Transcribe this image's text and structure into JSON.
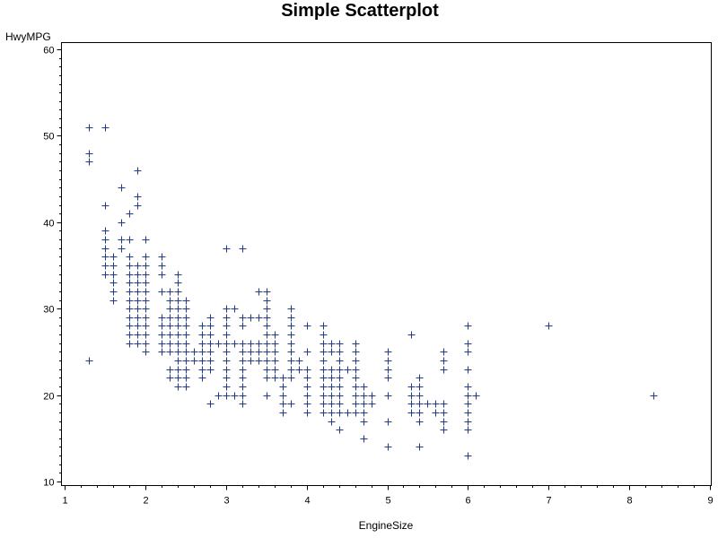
{
  "chart_data": {
    "type": "scatter",
    "title": "Simple Scatterplot",
    "xlabel": "EngineSize",
    "ylabel": "HwyMPG",
    "xlim": [
      1,
      9
    ],
    "ylim": [
      10,
      60
    ],
    "xticks": [
      1,
      2,
      3,
      4,
      5,
      6,
      7,
      8,
      9
    ],
    "yticks": [
      10,
      20,
      30,
      40,
      50,
      60
    ],
    "marker": "plus",
    "marker_color": "#1f3b8a",
    "grid": false,
    "points": [
      [
        1.3,
        51
      ],
      [
        1.3,
        48
      ],
      [
        1.3,
        47
      ],
      [
        1.3,
        24
      ],
      [
        1.5,
        51
      ],
      [
        1.5,
        42
      ],
      [
        1.5,
        39
      ],
      [
        1.5,
        38
      ],
      [
        1.5,
        37
      ],
      [
        1.5,
        36
      ],
      [
        1.5,
        35
      ],
      [
        1.5,
        34
      ],
      [
        1.6,
        36
      ],
      [
        1.6,
        35
      ],
      [
        1.6,
        34
      ],
      [
        1.6,
        33
      ],
      [
        1.6,
        32
      ],
      [
        1.6,
        31
      ],
      [
        1.7,
        44
      ],
      [
        1.7,
        40
      ],
      [
        1.7,
        38
      ],
      [
        1.7,
        37
      ],
      [
        1.8,
        41
      ],
      [
        1.8,
        38
      ],
      [
        1.8,
        36
      ],
      [
        1.8,
        35
      ],
      [
        1.8,
        34
      ],
      [
        1.8,
        33
      ],
      [
        1.8,
        32
      ],
      [
        1.8,
        31
      ],
      [
        1.8,
        30
      ],
      [
        1.8,
        29
      ],
      [
        1.8,
        28
      ],
      [
        1.8,
        27
      ],
      [
        1.8,
        26
      ],
      [
        1.9,
        46
      ],
      [
        1.9,
        43
      ],
      [
        1.9,
        42
      ],
      [
        1.9,
        35
      ],
      [
        1.9,
        34
      ],
      [
        1.9,
        33
      ],
      [
        1.9,
        32
      ],
      [
        1.9,
        31
      ],
      [
        1.9,
        30
      ],
      [
        1.9,
        29
      ],
      [
        1.9,
        28
      ],
      [
        1.9,
        27
      ],
      [
        1.9,
        26
      ],
      [
        2.0,
        38
      ],
      [
        2.0,
        36
      ],
      [
        2.0,
        35
      ],
      [
        2.0,
        34
      ],
      [
        2.0,
        33
      ],
      [
        2.0,
        32
      ],
      [
        2.0,
        31
      ],
      [
        2.0,
        30
      ],
      [
        2.0,
        29
      ],
      [
        2.0,
        28
      ],
      [
        2.0,
        27
      ],
      [
        2.0,
        26
      ],
      [
        2.0,
        25
      ],
      [
        2.2,
        36
      ],
      [
        2.2,
        35
      ],
      [
        2.2,
        34
      ],
      [
        2.2,
        32
      ],
      [
        2.2,
        29
      ],
      [
        2.2,
        28
      ],
      [
        2.2,
        27
      ],
      [
        2.2,
        26
      ],
      [
        2.2,
        25
      ],
      [
        2.3,
        32
      ],
      [
        2.3,
        31
      ],
      [
        2.3,
        30
      ],
      [
        2.3,
        29
      ],
      [
        2.3,
        28
      ],
      [
        2.3,
        27
      ],
      [
        2.3,
        26
      ],
      [
        2.3,
        25
      ],
      [
        2.3,
        23
      ],
      [
        2.3,
        22
      ],
      [
        2.4,
        34
      ],
      [
        2.4,
        33
      ],
      [
        2.4,
        32
      ],
      [
        2.4,
        31
      ],
      [
        2.4,
        30
      ],
      [
        2.4,
        29
      ],
      [
        2.4,
        28
      ],
      [
        2.4,
        27
      ],
      [
        2.4,
        26
      ],
      [
        2.4,
        25
      ],
      [
        2.4,
        24
      ],
      [
        2.4,
        23
      ],
      [
        2.4,
        22
      ],
      [
        2.4,
        21
      ],
      [
        2.5,
        31
      ],
      [
        2.5,
        30
      ],
      [
        2.5,
        29
      ],
      [
        2.5,
        28
      ],
      [
        2.5,
        27
      ],
      [
        2.5,
        26
      ],
      [
        2.5,
        25
      ],
      [
        2.5,
        24
      ],
      [
        2.5,
        23
      ],
      [
        2.5,
        22
      ],
      [
        2.5,
        21
      ],
      [
        2.6,
        25
      ],
      [
        2.6,
        24
      ],
      [
        2.7,
        28
      ],
      [
        2.7,
        27
      ],
      [
        2.7,
        26
      ],
      [
        2.7,
        25
      ],
      [
        2.7,
        24
      ],
      [
        2.7,
        23
      ],
      [
        2.7,
        22
      ],
      [
        2.8,
        29
      ],
      [
        2.8,
        28
      ],
      [
        2.8,
        27
      ],
      [
        2.8,
        26
      ],
      [
        2.8,
        25
      ],
      [
        2.8,
        24
      ],
      [
        2.8,
        23
      ],
      [
        2.8,
        19
      ],
      [
        2.9,
        26
      ],
      [
        2.9,
        20
      ],
      [
        3.0,
        37
      ],
      [
        3.0,
        30
      ],
      [
        3.0,
        29
      ],
      [
        3.0,
        28
      ],
      [
        3.0,
        27
      ],
      [
        3.0,
        26
      ],
      [
        3.0,
        25
      ],
      [
        3.0,
        24
      ],
      [
        3.0,
        23
      ],
      [
        3.0,
        22
      ],
      [
        3.0,
        21
      ],
      [
        3.0,
        20
      ],
      [
        3.1,
        30
      ],
      [
        3.1,
        26
      ],
      [
        3.1,
        20
      ],
      [
        3.2,
        37
      ],
      [
        3.2,
        29
      ],
      [
        3.2,
        28
      ],
      [
        3.2,
        26
      ],
      [
        3.2,
        25
      ],
      [
        3.2,
        24
      ],
      [
        3.2,
        23
      ],
      [
        3.2,
        22
      ],
      [
        3.2,
        21
      ],
      [
        3.2,
        20
      ],
      [
        3.2,
        19
      ],
      [
        3.3,
        29
      ],
      [
        3.3,
        26
      ],
      [
        3.3,
        25
      ],
      [
        3.3,
        24
      ],
      [
        3.4,
        32
      ],
      [
        3.4,
        29
      ],
      [
        3.4,
        26
      ],
      [
        3.4,
        25
      ],
      [
        3.4,
        24
      ],
      [
        3.5,
        32
      ],
      [
        3.5,
        31
      ],
      [
        3.5,
        30
      ],
      [
        3.5,
        29
      ],
      [
        3.5,
        28
      ],
      [
        3.5,
        27
      ],
      [
        3.5,
        26
      ],
      [
        3.5,
        25
      ],
      [
        3.5,
        24
      ],
      [
        3.5,
        23
      ],
      [
        3.5,
        22
      ],
      [
        3.5,
        20
      ],
      [
        3.6,
        27
      ],
      [
        3.6,
        26
      ],
      [
        3.6,
        25
      ],
      [
        3.6,
        24
      ],
      [
        3.6,
        23
      ],
      [
        3.6,
        22
      ],
      [
        3.7,
        22
      ],
      [
        3.7,
        21
      ],
      [
        3.7,
        20
      ],
      [
        3.7,
        19
      ],
      [
        3.7,
        18
      ],
      [
        3.8,
        30
      ],
      [
        3.8,
        29
      ],
      [
        3.8,
        28
      ],
      [
        3.8,
        27
      ],
      [
        3.8,
        26
      ],
      [
        3.8,
        25
      ],
      [
        3.8,
        24
      ],
      [
        3.8,
        23
      ],
      [
        3.8,
        22
      ],
      [
        3.8,
        19
      ],
      [
        3.9,
        24
      ],
      [
        3.9,
        23
      ],
      [
        4.0,
        28
      ],
      [
        4.0,
        25
      ],
      [
        4.0,
        23
      ],
      [
        4.0,
        22
      ],
      [
        4.0,
        21
      ],
      [
        4.0,
        20
      ],
      [
        4.0,
        19
      ],
      [
        4.0,
        18
      ],
      [
        4.2,
        28
      ],
      [
        4.2,
        27
      ],
      [
        4.2,
        26
      ],
      [
        4.2,
        25
      ],
      [
        4.2,
        24
      ],
      [
        4.2,
        23
      ],
      [
        4.2,
        22
      ],
      [
        4.2,
        21
      ],
      [
        4.2,
        20
      ],
      [
        4.2,
        19
      ],
      [
        4.2,
        18
      ],
      [
        4.3,
        26
      ],
      [
        4.3,
        25
      ],
      [
        4.3,
        23
      ],
      [
        4.3,
        22
      ],
      [
        4.3,
        21
      ],
      [
        4.3,
        20
      ],
      [
        4.3,
        19
      ],
      [
        4.3,
        18
      ],
      [
        4.3,
        17
      ],
      [
        4.4,
        26
      ],
      [
        4.4,
        25
      ],
      [
        4.4,
        24
      ],
      [
        4.4,
        23
      ],
      [
        4.4,
        22
      ],
      [
        4.4,
        21
      ],
      [
        4.4,
        20
      ],
      [
        4.4,
        19
      ],
      [
        4.4,
        18
      ],
      [
        4.4,
        16
      ],
      [
        4.5,
        23
      ],
      [
        4.5,
        18
      ],
      [
        4.6,
        26
      ],
      [
        4.6,
        25
      ],
      [
        4.6,
        24
      ],
      [
        4.6,
        23
      ],
      [
        4.6,
        22
      ],
      [
        4.6,
        21
      ],
      [
        4.6,
        20
      ],
      [
        4.6,
        19
      ],
      [
        4.6,
        18
      ],
      [
        4.7,
        21
      ],
      [
        4.7,
        20
      ],
      [
        4.7,
        19
      ],
      [
        4.7,
        18
      ],
      [
        4.7,
        17
      ],
      [
        4.7,
        15
      ],
      [
        4.8,
        20
      ],
      [
        4.8,
        19
      ],
      [
        5.0,
        25
      ],
      [
        5.0,
        24
      ],
      [
        5.0,
        23
      ],
      [
        5.0,
        22
      ],
      [
        5.0,
        20
      ],
      [
        5.0,
        17
      ],
      [
        5.0,
        14
      ],
      [
        5.3,
        27
      ],
      [
        5.3,
        21
      ],
      [
        5.3,
        20
      ],
      [
        5.3,
        19
      ],
      [
        5.3,
        18
      ],
      [
        5.4,
        22
      ],
      [
        5.4,
        21
      ],
      [
        5.4,
        20
      ],
      [
        5.4,
        19
      ],
      [
        5.4,
        18
      ],
      [
        5.4,
        17
      ],
      [
        5.4,
        14
      ],
      [
        5.5,
        19
      ],
      [
        5.6,
        19
      ],
      [
        5.6,
        18
      ],
      [
        5.7,
        25
      ],
      [
        5.7,
        24
      ],
      [
        5.7,
        23
      ],
      [
        5.7,
        19
      ],
      [
        5.7,
        18
      ],
      [
        5.7,
        17
      ],
      [
        5.7,
        16
      ],
      [
        6.0,
        28
      ],
      [
        6.0,
        26
      ],
      [
        6.0,
        25
      ],
      [
        6.0,
        23
      ],
      [
        6.0,
        21
      ],
      [
        6.0,
        20
      ],
      [
        6.0,
        19
      ],
      [
        6.0,
        18
      ],
      [
        6.0,
        17
      ],
      [
        6.0,
        16
      ],
      [
        6.0,
        13
      ],
      [
        6.1,
        20
      ],
      [
        7.0,
        28
      ],
      [
        8.3,
        20
      ]
    ]
  }
}
